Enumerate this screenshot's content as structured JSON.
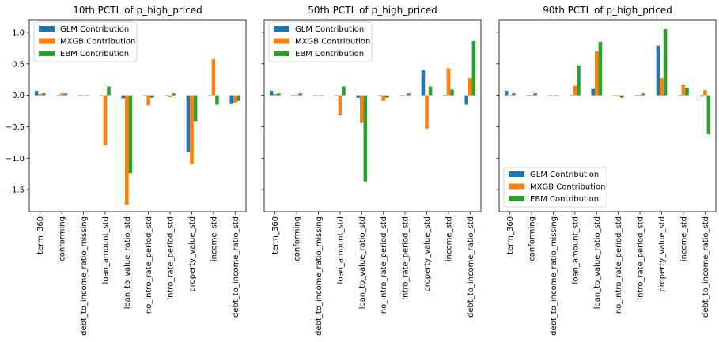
{
  "chart_data": [
    {
      "type": "bar",
      "title": "10th PCTL of p_high_priced",
      "categories": [
        "term_360",
        "conforming",
        "debt_to_income_ratio_missing",
        "loan_amount_std",
        "loan_to_value_ratio_std",
        "no_intro_rate_period_std",
        "intro_rate_period_std",
        "property_value_std",
        "income_std",
        "debt_to_income_ratio_std"
      ],
      "series": [
        {
          "name": "GLM Contribution",
          "color": "#1f77b4",
          "values": [
            0.07,
            0.0,
            0.0,
            0.0,
            -0.05,
            0.0,
            0.0,
            -0.91,
            0.0,
            -0.14
          ]
        },
        {
          "name": "MXGB Contribution",
          "color": "#ff7f0e",
          "values": [
            0.02,
            0.03,
            -0.01,
            -0.8,
            -1.74,
            -0.16,
            -0.03,
            -1.1,
            0.57,
            -0.12
          ]
        },
        {
          "name": "EBM Contribution",
          "color": "#2ca02c",
          "values": [
            0.03,
            0.03,
            -0.01,
            0.14,
            -1.24,
            -0.04,
            0.03,
            -0.41,
            -0.15,
            -0.09
          ]
        }
      ],
      "ylim": [
        -1.85,
        1.2
      ],
      "yticks": [
        -1.5,
        -1.0,
        -0.5,
        0.0,
        0.5,
        1.0
      ],
      "ytick_labels": [
        "−1.5",
        "−1.0",
        "−0.5",
        "0.0",
        "0.5",
        "1.0"
      ],
      "legend_position": "top-left",
      "grid": false
    },
    {
      "type": "bar",
      "title": "50th PCTL of p_high_priced",
      "categories": [
        "term_360",
        "conforming",
        "debt_to_income_ratio_missing",
        "loan_amount_std",
        "loan_to_value_ratio_std",
        "no_intro_rate_period_std",
        "intro_rate_period_std",
        "property_value_std",
        "income_std",
        "debt_to_income_ratio_std"
      ],
      "series": [
        {
          "name": "GLM Contribution",
          "color": "#1f77b4",
          "values": [
            0.07,
            0.0,
            0.0,
            0.0,
            -0.04,
            0.0,
            0.0,
            0.4,
            0.0,
            -0.15
          ]
        },
        {
          "name": "MXGB Contribution",
          "color": "#ff7f0e",
          "values": [
            0.02,
            0.01,
            -0.01,
            -0.32,
            -0.44,
            -0.09,
            0.0,
            -0.53,
            0.43,
            0.27
          ]
        },
        {
          "name": "EBM Contribution",
          "color": "#2ca02c",
          "values": [
            0.03,
            0.03,
            -0.01,
            0.14,
            -1.37,
            -0.04,
            0.03,
            0.14,
            0.09,
            0.86
          ]
        }
      ],
      "ylim": [
        -1.85,
        1.2
      ],
      "legend_position": "top-left",
      "grid": false
    },
    {
      "type": "bar",
      "title": "90th PCTL of p_high_priced",
      "categories": [
        "term_360",
        "conforming",
        "debt_to_income_ratio_missing",
        "loan_amount_std",
        "loan_to_value_ratio_std",
        "no_intro_rate_period_std",
        "intro_rate_period_std",
        "property_value_std",
        "income_std",
        "debt_to_income_ratio_std"
      ],
      "series": [
        {
          "name": "GLM Contribution",
          "color": "#1f77b4",
          "values": [
            0.07,
            0.0,
            0.0,
            0.0,
            0.1,
            0.0,
            0.0,
            0.79,
            0.0,
            -0.02
          ]
        },
        {
          "name": "MXGB Contribution",
          "color": "#ff7f0e",
          "values": [
            0.0,
            0.01,
            -0.01,
            0.15,
            0.7,
            -0.02,
            0.01,
            0.27,
            0.17,
            0.08
          ]
        },
        {
          "name": "EBM Contribution",
          "color": "#2ca02c",
          "values": [
            0.03,
            0.03,
            -0.01,
            0.47,
            0.85,
            -0.04,
            0.03,
            1.05,
            0.12,
            -0.62
          ]
        }
      ],
      "ylim": [
        -1.85,
        1.2
      ],
      "legend_position": "bottom-left",
      "grid": false
    }
  ]
}
